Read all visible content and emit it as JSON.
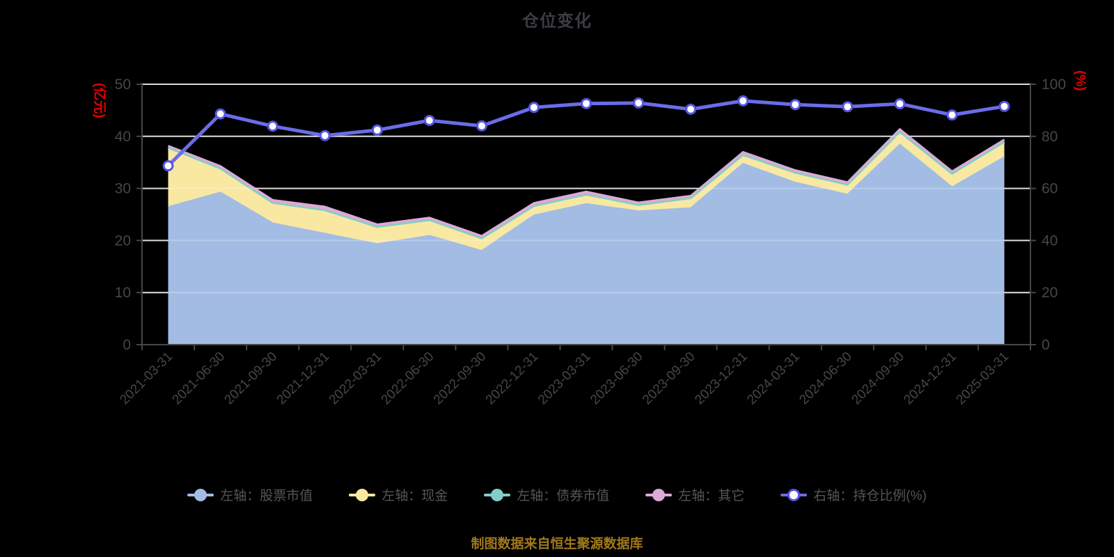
{
  "header": {
    "title": "仓位变化"
  },
  "footer": {
    "source_note": "制图数据来自恒生聚源数据库"
  },
  "colors": {
    "background": "#000000",
    "title_text": "#3c3c42",
    "axis_text": "#46464b",
    "axis_line": "#46464b",
    "grid_line": "#d0d0d0",
    "axis_name_red": "#e60000",
    "footer_gold": "#a1791b",
    "legend_text": "#55555a",
    "stock_area": "#a2bce4",
    "cash_area": "#f8e8a2",
    "bond_area": "#82cec6",
    "other_area": "#dcaad6",
    "ratio_line": "#6b6ce9",
    "ratio_dot_ring": "#5456e0",
    "ratio_dot_fill": "#ffffff"
  },
  "chart_data": {
    "type": "area",
    "title": "仓位变化",
    "stacked": true,
    "grid": true,
    "legend_position": "bottom",
    "categories": [
      "2021-03-31",
      "2021-06-30",
      "2021-09-30",
      "2021-12-31",
      "2022-03-31",
      "2022-06-30",
      "2022-09-30",
      "2022-12-31",
      "2023-03-31",
      "2023-06-30",
      "2023-09-30",
      "2023-12-31",
      "2024-03-31",
      "2024-06-30",
      "2024-09-30",
      "2024-12-31",
      "2025-03-31"
    ],
    "series": [
      {
        "key": "stock",
        "name": "左轴：股票市值",
        "type": "area",
        "axis": "left",
        "color": "#a2bce4",
        "values": [
          26.4,
          29.2,
          23.3,
          21.3,
          19.3,
          20.9,
          18.0,
          24.8,
          27.0,
          25.6,
          26.2,
          34.7,
          31.1,
          28.8,
          38.4,
          30.2,
          36.0
        ]
      },
      {
        "key": "cash",
        "name": "左轴：现金",
        "type": "area",
        "axis": "left",
        "color": "#f8e8a2",
        "values": [
          11.2,
          4.4,
          3.7,
          4.4,
          3.1,
          2.9,
          2.3,
          1.7,
          1.7,
          1.1,
          1.8,
          1.6,
          1.8,
          1.7,
          2.3,
          2.5,
          2.8
        ]
      },
      {
        "key": "bond",
        "name": "左轴：债券市值",
        "type": "area",
        "axis": "left",
        "color": "#82cec6",
        "values": [
          0.2,
          0.2,
          0.2,
          0.1,
          0.2,
          0.1,
          0.1,
          0.1,
          0.1,
          0.1,
          0.1,
          0.1,
          0.1,
          0.2,
          0.1,
          0.1,
          0.1
        ]
      },
      {
        "key": "other",
        "name": "左轴：其它",
        "type": "area",
        "axis": "left",
        "color": "#dcaad6",
        "values": [
          0.4,
          0.5,
          0.6,
          0.7,
          0.5,
          0.5,
          0.5,
          0.6,
          0.6,
          0.5,
          0.5,
          0.6,
          0.5,
          0.5,
          0.6,
          0.5,
          0.5
        ]
      },
      {
        "key": "position-ratio",
        "name": "右轴：持仓比例(%)",
        "type": "line",
        "axis": "right",
        "color": "#6b6ce9",
        "values": [
          68.7,
          88.6,
          83.9,
          80.3,
          82.4,
          86.1,
          84.0,
          91.1,
          92.6,
          92.8,
          90.4,
          93.6,
          92.2,
          91.4,
          92.5,
          88.2,
          91.5
        ]
      }
    ],
    "left_axis": {
      "name": "(亿元)",
      "min": 0,
      "max": 50,
      "interval": 10,
      "labels": [
        "0",
        "10",
        "20",
        "30",
        "40",
        "50"
      ]
    },
    "right_axis": {
      "name": "(%)",
      "min": 0,
      "max": 100,
      "interval": 20,
      "labels": [
        "0",
        "20",
        "40",
        "60",
        "80",
        "100"
      ]
    }
  }
}
